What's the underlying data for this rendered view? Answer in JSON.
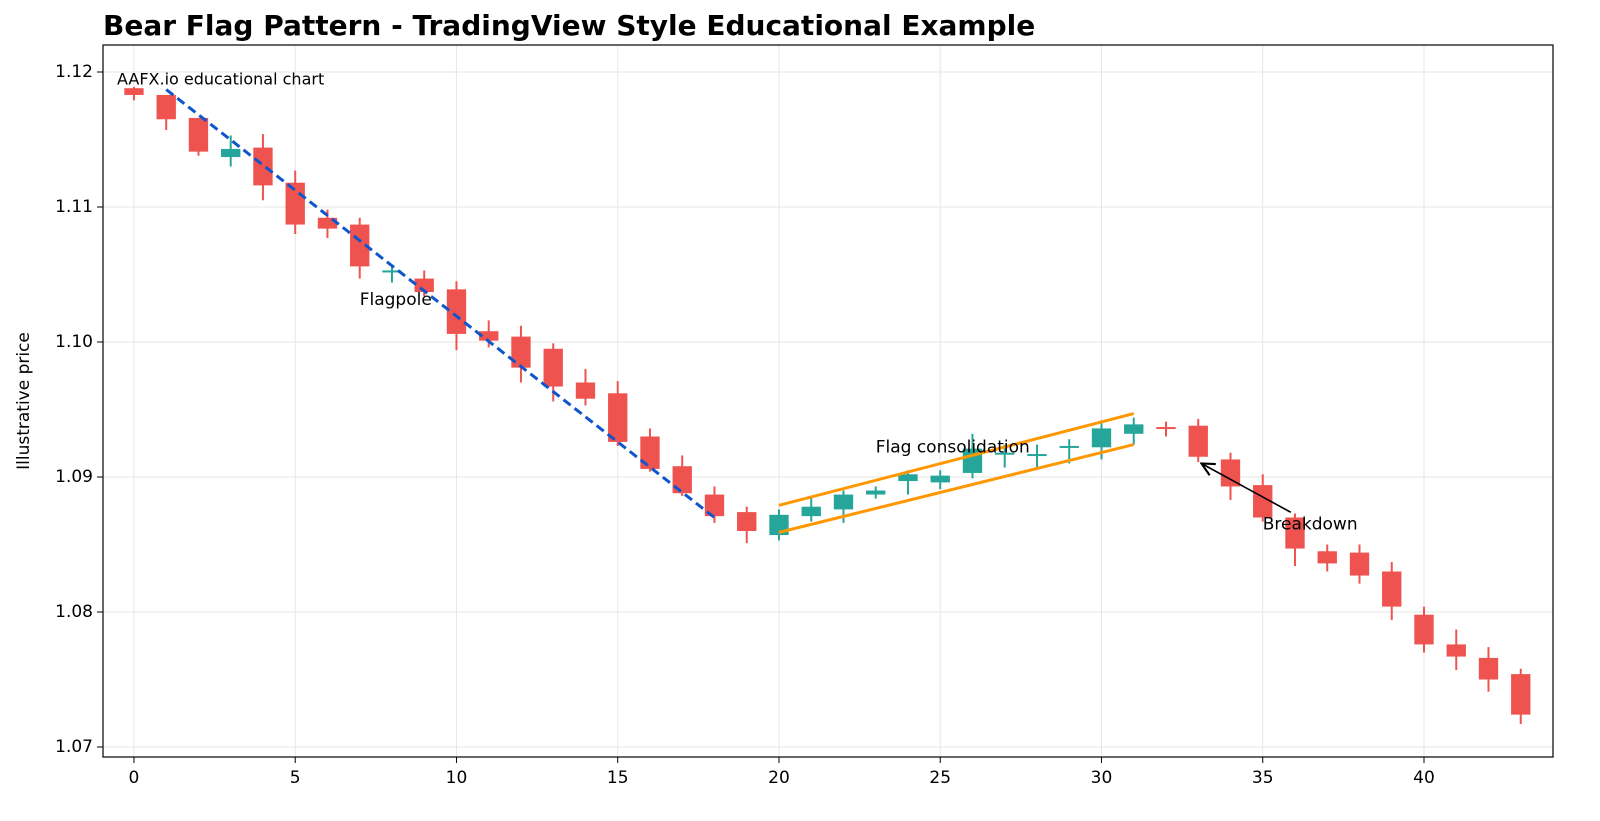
{
  "chart_data": {
    "type": "candlestick",
    "title": "Bear Flag Pattern - TradingView Style Educational Example",
    "y_label": "Illustrative price",
    "watermark": "AAFX.io educational chart",
    "x": [
      0,
      1,
      2,
      3,
      4,
      5,
      6,
      7,
      8,
      9,
      10,
      11,
      12,
      13,
      14,
      15,
      16,
      17,
      18,
      19,
      20,
      21,
      22,
      23,
      24,
      25,
      26,
      27,
      28,
      29,
      30,
      31,
      32,
      33,
      34,
      35,
      36,
      37,
      38,
      39,
      40,
      41,
      42,
      43
    ],
    "open": [
      1.1188,
      1.1183,
      1.1166,
      1.1137,
      1.1144,
      1.1118,
      1.1092,
      1.1087,
      1.1052,
      1.1047,
      1.1039,
      1.1008,
      1.1004,
      1.0995,
      1.097,
      1.0962,
      1.093,
      1.0908,
      1.0887,
      1.0874,
      1.0857,
      1.0871,
      1.0876,
      1.0887,
      1.0897,
      1.0896,
      1.0903,
      1.0917,
      1.0916,
      1.0922,
      1.0922,
      1.0932,
      1.0937,
      1.0938,
      1.0913,
      1.0894,
      1.087,
      1.0845,
      1.0844,
      1.083,
      1.0798,
      1.0776,
      1.0766,
      1.0754
    ],
    "high": [
      1.1189,
      1.1183,
      1.1166,
      1.1153,
      1.1154,
      1.1127,
      1.1098,
      1.1092,
      1.1057,
      1.1053,
      1.1045,
      1.1016,
      1.1012,
      1.0999,
      1.098,
      1.0971,
      1.0936,
      1.0916,
      1.0893,
      1.0878,
      1.0876,
      1.0885,
      1.089,
      1.0893,
      1.0905,
      1.0905,
      1.0932,
      1.0924,
      1.0924,
      1.0928,
      1.0942,
      1.0944,
      1.0941,
      1.0943,
      1.0918,
      1.0902,
      1.0873,
      1.085,
      1.085,
      1.0837,
      1.0804,
      1.0787,
      1.0774,
      1.0758
    ],
    "low": [
      1.1179,
      1.1157,
      1.1138,
      1.113,
      1.1105,
      1.108,
      1.1077,
      1.1047,
      1.1044,
      1.1034,
      1.0994,
      1.0996,
      1.097,
      1.0956,
      1.0953,
      1.0923,
      1.0904,
      1.0886,
      1.0866,
      1.0851,
      1.0853,
      1.0867,
      1.0866,
      1.0884,
      1.0887,
      1.0891,
      1.0899,
      1.0907,
      1.0907,
      1.091,
      1.0913,
      1.0924,
      1.093,
      1.0911,
      1.0883,
      1.0867,
      1.0834,
      1.083,
      1.0821,
      1.0794,
      1.077,
      1.0757,
      1.0741,
      1.0717
    ],
    "close": [
      1.1183,
      1.1165,
      1.1141,
      1.1143,
      1.1116,
      1.1087,
      1.1084,
      1.1056,
      1.1053,
      1.1037,
      1.1006,
      1.1001,
      1.0981,
      1.0967,
      1.0958,
      1.0926,
      1.0906,
      1.0888,
      1.0871,
      1.086,
      1.0872,
      1.0878,
      1.0887,
      1.089,
      1.0902,
      1.0901,
      1.0921,
      1.0918,
      1.0917,
      1.0923,
      1.0936,
      1.0939,
      1.0936,
      1.0915,
      1.0893,
      1.087,
      1.0847,
      1.0836,
      1.0827,
      1.0804,
      1.0776,
      1.0767,
      1.075,
      1.0724
    ],
    "up_color": "#26a69a",
    "down_color": "#ef5350",
    "xlim": [
      -0.96,
      44.0
    ],
    "ylim": [
      1.06926,
      1.122
    ],
    "xticks": [
      0,
      5,
      10,
      15,
      20,
      25,
      30,
      35,
      40
    ],
    "yticks": [
      1.07,
      1.08,
      1.09,
      {
        "value": 1.1,
        "label": "1.10"
      },
      1.11,
      1.12
    ],
    "grid": true,
    "flagpole": {
      "label": "Flagpole",
      "color": "#1155cc",
      "x": [
        1,
        18
      ],
      "y": [
        1.1187,
        1.087
      ],
      "label_x": 7,
      "label_y": 1.1031
    },
    "flag": {
      "label": "Flag consolidation",
      "color": "#ff9800",
      "x": [
        20,
        31
      ],
      "upper": [
        1.0879,
        1.0947
      ],
      "lower": [
        1.0859,
        1.0924
      ],
      "label_x": 23,
      "label_y": 1.0922
    },
    "breakdown": {
      "text": "Breakdown",
      "text_x": 35,
      "text_y": 1.0865,
      "arrow_x": 33.1,
      "arrow_y": 1.091
    }
  }
}
